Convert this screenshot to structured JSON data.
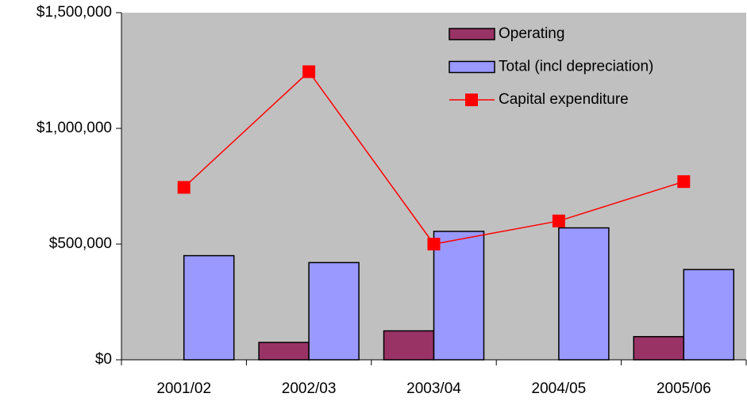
{
  "chart_data": {
    "type": "bar",
    "categories": [
      "2001/02",
      "2002/03",
      "2003/04",
      "2004/05",
      "2005/06"
    ],
    "series": [
      {
        "name": "Operating",
        "color": "#993366",
        "type": "bar",
        "values": [
          null,
          75000,
          125000,
          null,
          100000
        ]
      },
      {
        "name": "Total (incl depreciation)",
        "color": "#9999ff",
        "type": "bar",
        "values": [
          450000,
          420000,
          555000,
          570000,
          390000
        ]
      },
      {
        "name": "Capital expenditure",
        "color": "#ff0000",
        "type": "line",
        "values": [
          745000,
          1245000,
          500000,
          600000,
          770000
        ]
      }
    ],
    "ylim": [
      0,
      1500000
    ],
    "yticks": [
      {
        "value": 0,
        "label": "$0"
      },
      {
        "value": 500000,
        "label": "$500,000"
      },
      {
        "value": 1000000,
        "label": "$1,000,000"
      },
      {
        "value": 1500000,
        "label": "$1,500,000"
      }
    ],
    "plot_background": "#c0c0c0",
    "legend": "top-right"
  }
}
